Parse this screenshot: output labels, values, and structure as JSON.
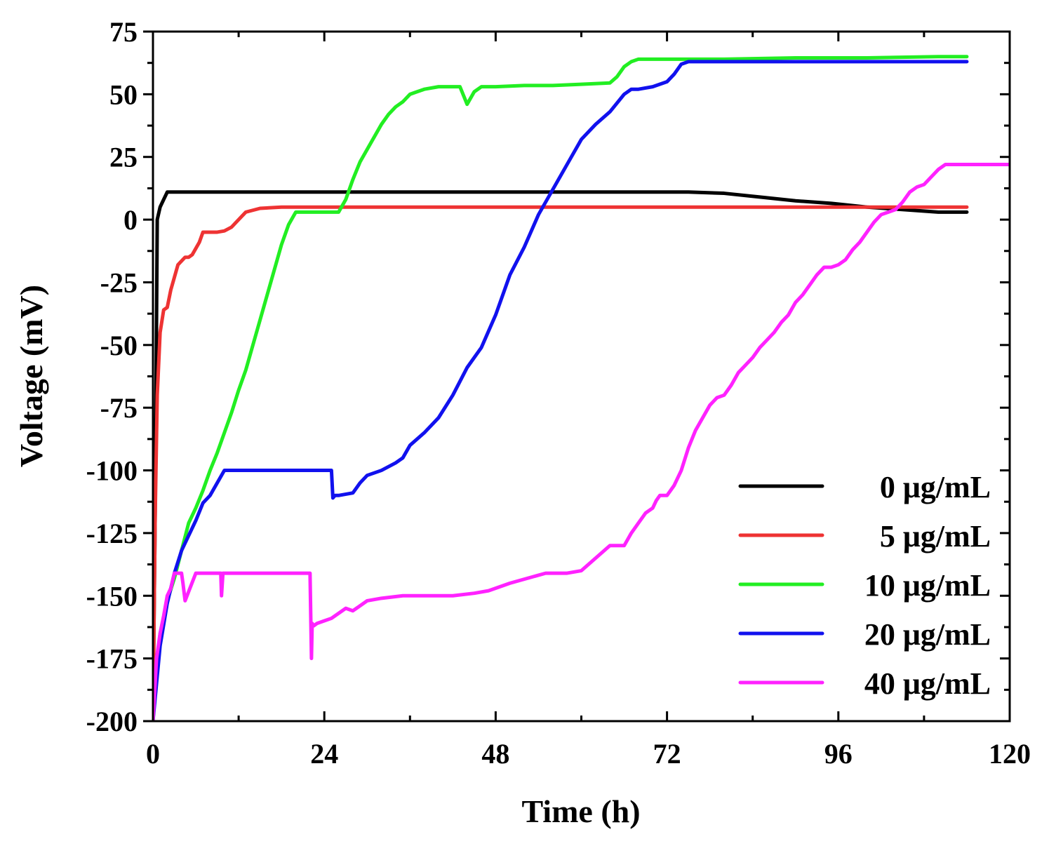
{
  "chart_data": {
    "type": "line",
    "title": "",
    "xlabel": "Time (h)",
    "ylabel": "Voltage (mV)",
    "xlim": [
      0,
      120
    ],
    "ylim": [
      -200,
      75
    ],
    "xticks": [
      0,
      24,
      48,
      72,
      96,
      120
    ],
    "yticks": [
      75,
      50,
      25,
      0,
      -25,
      -50,
      -75,
      -100,
      -125,
      -150,
      -175,
      -200
    ],
    "grid": false,
    "legend_position": "bottom-right",
    "series": [
      {
        "name": "0 μg/mL",
        "color": "#000000",
        "x": [
          0,
          0.3,
          0.6,
          1.0,
          1.5,
          2.0,
          10,
          30,
          50,
          70,
          75,
          80,
          85,
          90,
          95,
          100,
          105,
          110,
          114
        ],
        "y": [
          -200,
          -120,
          0,
          5,
          8,
          11,
          11,
          11,
          11,
          11,
          11,
          10.5,
          9,
          7.5,
          6.5,
          5,
          4,
          3,
          3
        ]
      },
      {
        "name": "5 μg/mL",
        "color": "#ee3333",
        "x": [
          0,
          0.3,
          0.6,
          1.0,
          1.5,
          2.0,
          2.5,
          3.0,
          3.5,
          4.5,
          5.0,
          5.5,
          6.5,
          7.0,
          8.0,
          9.0,
          10,
          11,
          12,
          13,
          15,
          18,
          24,
          60,
          100,
          114
        ],
        "y": [
          -200,
          -120,
          -70,
          -45,
          -36,
          -35,
          -28,
          -23,
          -18,
          -15,
          -15,
          -14,
          -9,
          -5,
          -5,
          -5,
          -4.5,
          -3,
          0,
          3,
          4.5,
          5,
          5,
          5,
          5,
          5
        ]
      },
      {
        "name": "10 μg/mL",
        "color": "#22ee22",
        "x": [
          0,
          0.5,
          1,
          2,
          3,
          4,
          5,
          6,
          7,
          8,
          9,
          10,
          11,
          12,
          13,
          14,
          15,
          16,
          17,
          18,
          19,
          20,
          21,
          22,
          23,
          26,
          27,
          28,
          29,
          30,
          31,
          32,
          33,
          34,
          35,
          36,
          37,
          38,
          40,
          43,
          44,
          45,
          46,
          48,
          52,
          56,
          60,
          64,
          65,
          66,
          67,
          68,
          70,
          80,
          90,
          100,
          110,
          114
        ],
        "y": [
          -200,
          -180,
          -165,
          -152,
          -143,
          -132,
          -121,
          -115,
          -108,
          -100,
          -93,
          -85,
          -77,
          -68,
          -60,
          -50,
          -40,
          -30,
          -20,
          -10,
          -2,
          3,
          3,
          3,
          3,
          3,
          8,
          16,
          23,
          28,
          33,
          38,
          42,
          45,
          47,
          50,
          51,
          52,
          53,
          53,
          46,
          51,
          53,
          53,
          53.5,
          53.5,
          54,
          54.5,
          57,
          61,
          63,
          64,
          64,
          64,
          64.5,
          64.5,
          65,
          65
        ]
      },
      {
        "name": "20 μg/mL",
        "color": "#1111ee",
        "x": [
          0,
          0.5,
          1,
          2,
          3,
          4,
          5,
          6,
          7,
          8,
          9,
          10,
          15,
          25,
          25.2,
          25.5,
          26,
          28,
          29,
          30,
          32,
          34,
          35,
          36,
          38,
          40,
          42,
          44,
          46,
          48,
          50,
          52,
          54,
          56,
          58,
          60,
          62,
          64,
          66,
          67,
          68,
          70,
          72,
          73,
          74,
          75,
          80,
          90,
          100,
          114
        ],
        "y": [
          -200,
          -185,
          -170,
          -153,
          -141,
          -132,
          -126,
          -120,
          -113,
          -110,
          -105,
          -100,
          -100,
          -100,
          -111,
          -110,
          -110,
          -109,
          -105,
          -102,
          -100,
          -97,
          -95,
          -90,
          -85,
          -79,
          -70,
          -59,
          -51,
          -38,
          -22,
          -11,
          2,
          12,
          22,
          32,
          38,
          43,
          50,
          52,
          52,
          53,
          55,
          58,
          62,
          63,
          63,
          63,
          63,
          63
        ]
      },
      {
        "name": "40 μg/mL",
        "color": "#ff22ff",
        "x": [
          0,
          0.5,
          1,
          1.5,
          2,
          2.5,
          3,
          3.5,
          4,
          4.2,
          4.5,
          6,
          8,
          9.5,
          9.6,
          9.8,
          10,
          15,
          22,
          22.2,
          22.3,
          22.5,
          23,
          24,
          25,
          26,
          27,
          28,
          30,
          32,
          35,
          40,
          42,
          45,
          47,
          50,
          55,
          57,
          58,
          60,
          62,
          64,
          65,
          66,
          67,
          68,
          69,
          70,
          70.5,
          71,
          72,
          73,
          74,
          75,
          76,
          77,
          78,
          79,
          80,
          81,
          82,
          83,
          84,
          85,
          86,
          87,
          88,
          89,
          90,
          91,
          92,
          93,
          94,
          95,
          96,
          97,
          98,
          99,
          100,
          101,
          102,
          103,
          104,
          105,
          106,
          107,
          108,
          109,
          110,
          111,
          112,
          113,
          114,
          115,
          116,
          117,
          118,
          119,
          120
        ],
        "y": [
          -200,
          -175,
          -165,
          -158,
          -150,
          -147,
          -141,
          -141,
          -141,
          -145,
          -152,
          -141,
          -141,
          -141,
          -150,
          -141,
          -141,
          -141,
          -141,
          -175,
          -161,
          -162,
          -161,
          -160,
          -159,
          -157,
          -155,
          -156,
          -152,
          -151,
          -150,
          -150,
          -150,
          -149,
          -148,
          -145,
          -141,
          -141,
          -141,
          -140,
          -135,
          -130,
          -130,
          -130,
          -125,
          -121,
          -117,
          -115,
          -112,
          -110,
          -110,
          -106,
          -100,
          -91,
          -84,
          -79,
          -74,
          -71,
          -70,
          -66,
          -61,
          -58,
          -55,
          -51,
          -48,
          -45,
          -41,
          -38,
          -33,
          -30,
          -26,
          -22,
          -19,
          -19,
          -18,
          -16,
          -12,
          -9,
          -5,
          -1,
          2,
          3,
          4,
          7,
          11,
          13,
          14,
          17,
          20,
          22,
          22,
          22,
          22,
          22,
          22,
          22,
          22,
          22,
          22
        ]
      }
    ]
  }
}
